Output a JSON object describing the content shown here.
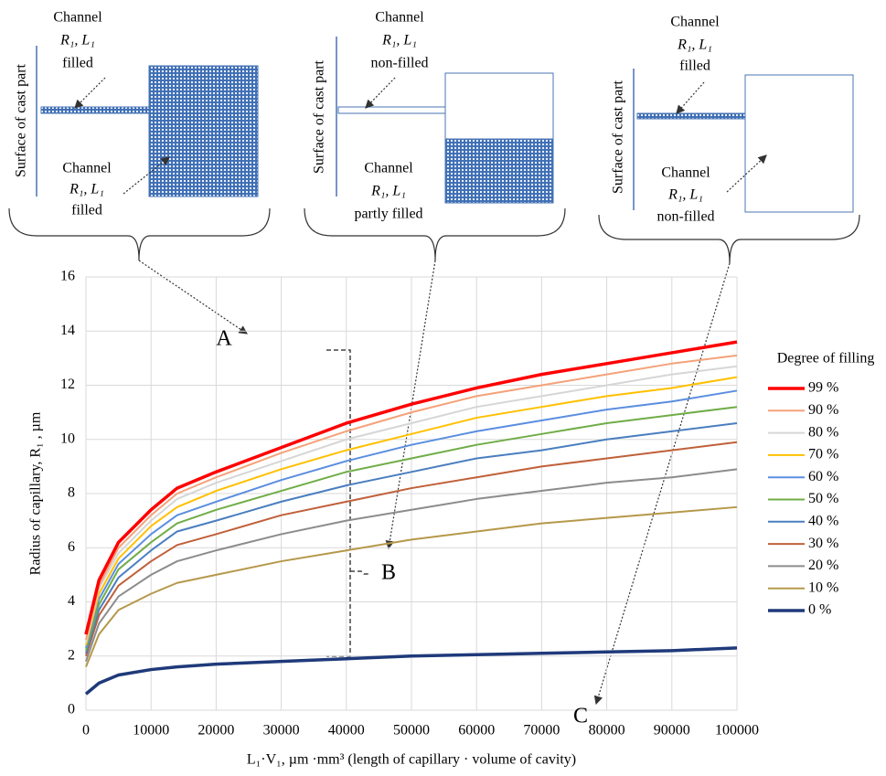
{
  "chart_data": {
    "type": "line",
    "y_label": "Radius of capillary, R₁ , µm",
    "x_label": "L₁·V₁, µm ·mm³ (length of capillary · volume of cavity)",
    "legend_title": "Degree of filling",
    "annotations": [
      "A",
      "B",
      "C"
    ],
    "x": [
      0,
      2000,
      5000,
      10000,
      14000,
      20000,
      30000,
      40000,
      50000,
      60000,
      70000,
      80000,
      90000,
      100000
    ],
    "xlim": [
      0,
      100000
    ],
    "xticks": [
      0,
      10000,
      20000,
      30000,
      40000,
      50000,
      60000,
      70000,
      80000,
      90000,
      100000
    ],
    "ylim": [
      0,
      16
    ],
    "yticks": [
      0,
      2,
      4,
      6,
      8,
      10,
      12,
      14,
      16
    ],
    "grid": true,
    "legend": "right",
    "series": [
      {
        "name": "99 %",
        "color": "#ff0000",
        "values": [
          2.8,
          4.8,
          6.2,
          7.4,
          8.2,
          8.8,
          9.7,
          10.6,
          11.3,
          11.9,
          12.4,
          12.8,
          13.2,
          13.6
        ]
      },
      {
        "name": "90 %",
        "color": "#f4a27a",
        "values": [
          2.6,
          4.6,
          6.0,
          7.2,
          8.0,
          8.6,
          9.5,
          10.3,
          11.0,
          11.6,
          12.0,
          12.4,
          12.8,
          13.1
        ]
      },
      {
        "name": "80 %",
        "color": "#d6d6d6",
        "values": [
          2.5,
          4.5,
          5.8,
          7.0,
          7.8,
          8.4,
          9.2,
          10.0,
          10.6,
          11.2,
          11.6,
          12.0,
          12.4,
          12.7
        ]
      },
      {
        "name": "70 %",
        "color": "#ffc000",
        "values": [
          2.4,
          4.3,
          5.6,
          6.8,
          7.5,
          8.1,
          8.9,
          9.6,
          10.2,
          10.8,
          11.2,
          11.6,
          11.9,
          12.3
        ]
      },
      {
        "name": "60 %",
        "color": "#5b8ee0",
        "values": [
          2.3,
          4.1,
          5.4,
          6.5,
          7.2,
          7.7,
          8.5,
          9.2,
          9.8,
          10.3,
          10.7,
          11.1,
          11.4,
          11.8
        ]
      },
      {
        "name": "50 %",
        "color": "#70ad47",
        "values": [
          2.2,
          3.9,
          5.2,
          6.2,
          6.9,
          7.4,
          8.1,
          8.8,
          9.3,
          9.8,
          10.2,
          10.6,
          10.9,
          11.2
        ]
      },
      {
        "name": "40 %",
        "color": "#4a7ebf",
        "values": [
          2.1,
          3.7,
          4.9,
          5.9,
          6.6,
          7.0,
          7.7,
          8.3,
          8.8,
          9.3,
          9.6,
          10.0,
          10.3,
          10.6
        ]
      },
      {
        "name": "30 %",
        "color": "#c0603a",
        "values": [
          2.0,
          3.5,
          4.6,
          5.5,
          6.1,
          6.5,
          7.2,
          7.7,
          8.2,
          8.6,
          9.0,
          9.3,
          9.6,
          9.9
        ]
      },
      {
        "name": "20 %",
        "color": "#8c8c8c",
        "values": [
          1.8,
          3.2,
          4.2,
          5.0,
          5.5,
          5.9,
          6.5,
          7.0,
          7.4,
          7.8,
          8.1,
          8.4,
          8.6,
          8.9
        ]
      },
      {
        "name": "10 %",
        "color": "#b5984a",
        "values": [
          1.6,
          2.8,
          3.7,
          4.3,
          4.7,
          5.0,
          5.5,
          5.9,
          6.3,
          6.6,
          6.9,
          7.1,
          7.3,
          7.5
        ]
      },
      {
        "name": "0 %",
        "color": "#1f3a7a",
        "values": [
          0.6,
          1.0,
          1.3,
          1.5,
          1.6,
          1.7,
          1.8,
          1.9,
          2.0,
          2.05,
          2.1,
          2.15,
          2.2,
          2.3
        ]
      }
    ]
  },
  "diagrams": [
    {
      "surface": "Surface of cast part",
      "top": [
        "Channel",
        "R₁, L₁",
        "filled"
      ],
      "bottom": [
        "Channel",
        "R₁, L₁",
        "filled"
      ]
    },
    {
      "surface": "Surface of cast part",
      "top": [
        "Channel",
        "R₁, L₁",
        "non-filled"
      ],
      "bottom": [
        "Channel",
        "R₁, L₁",
        "partly filled"
      ]
    },
    {
      "surface": "Surface of cast part",
      "top": [
        "Channel",
        "R₁, L₁",
        "filled"
      ],
      "bottom": [
        "Channel",
        "R₁, L₁",
        "non-filled"
      ]
    }
  ]
}
